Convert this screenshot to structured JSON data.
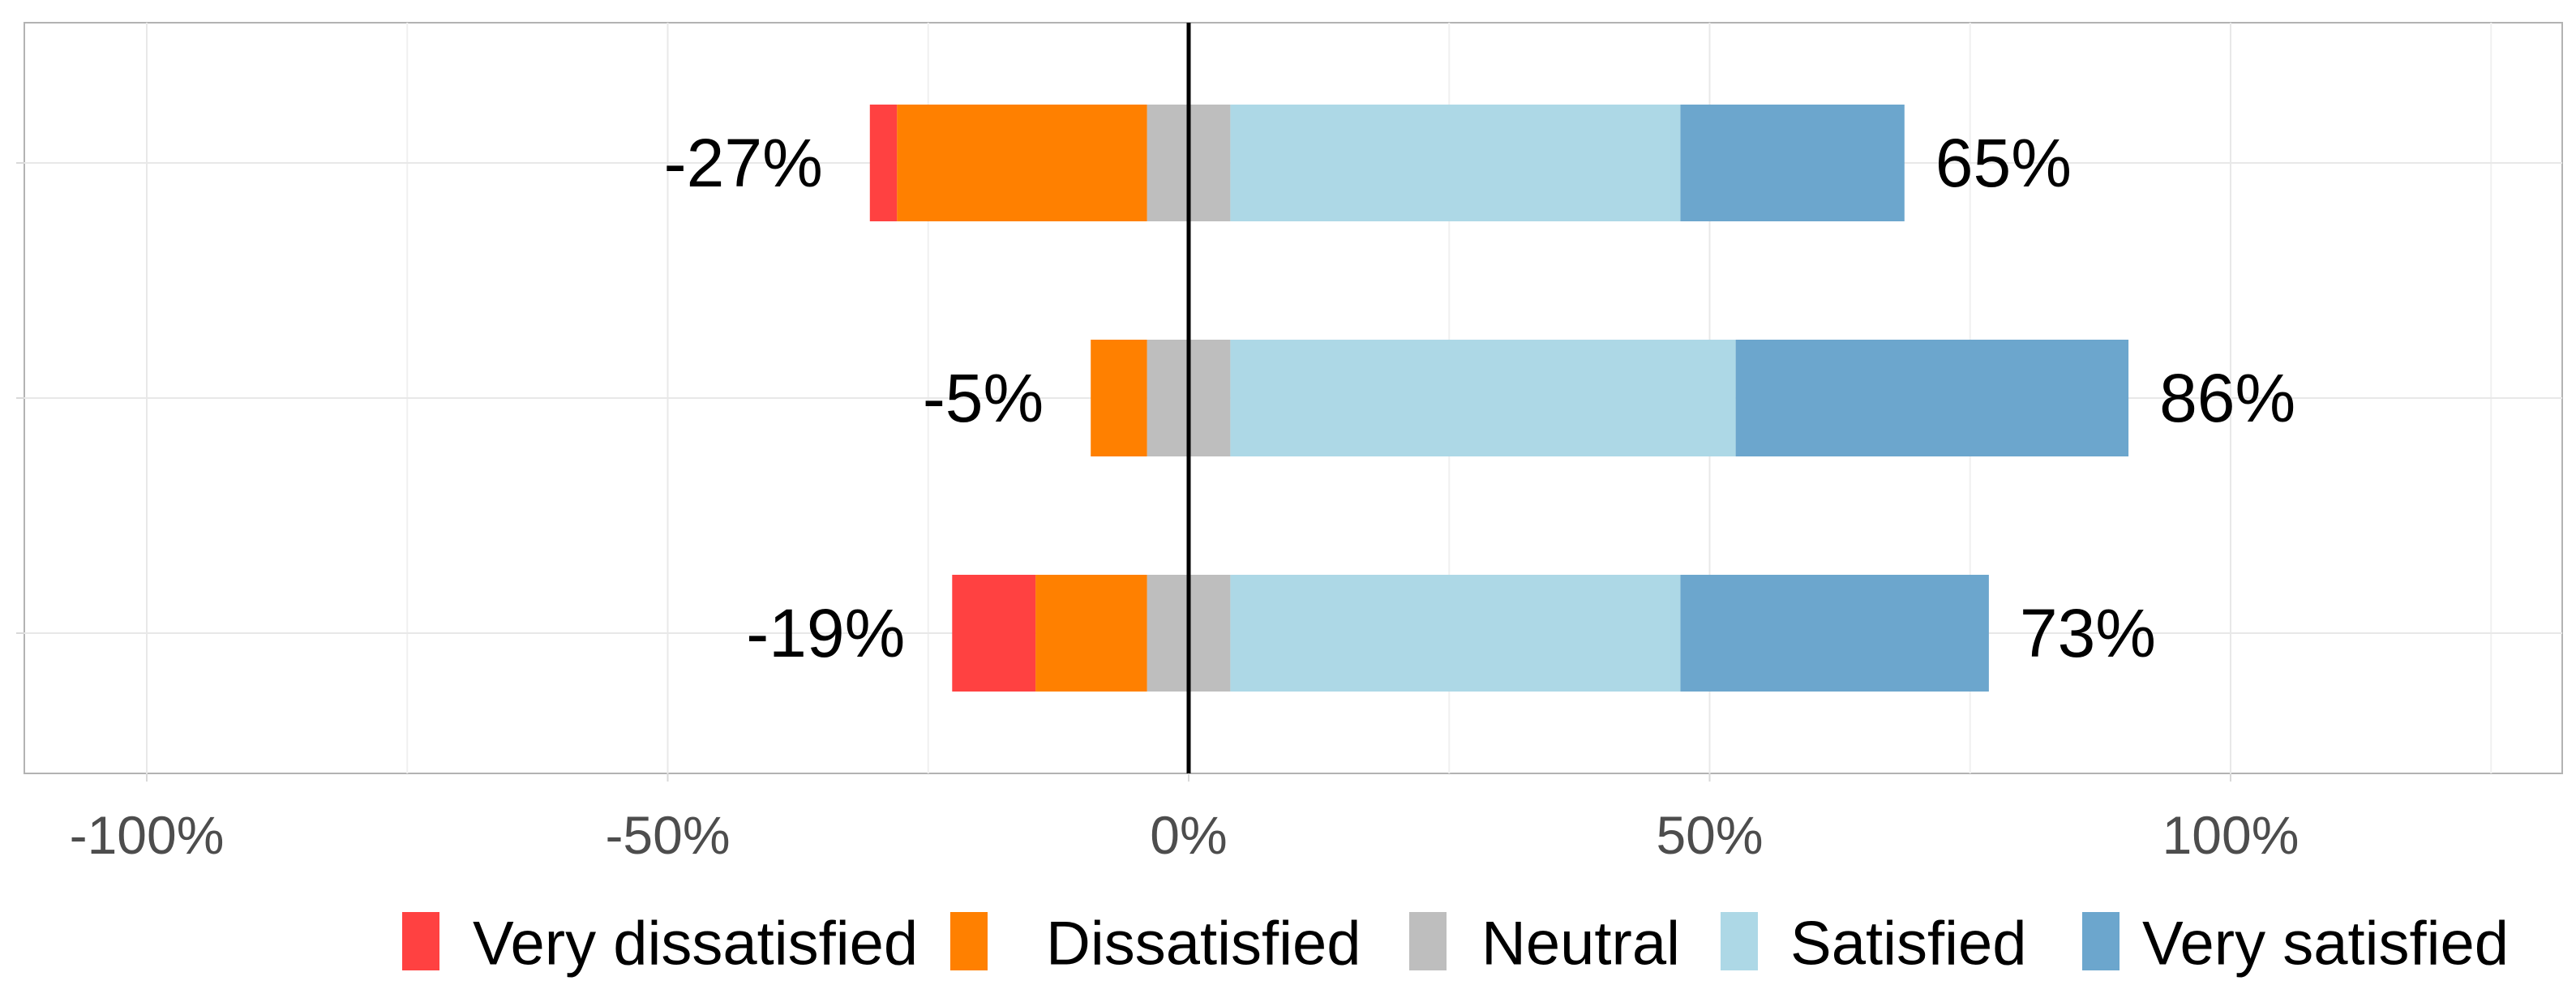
{
  "chart_data": {
    "type": "bar",
    "orientation": "horizontal",
    "stacked": "diverging",
    "title": "",
    "xlabel": "",
    "ylabel": "",
    "xlim": [
      -1.05,
      1.25
    ],
    "x_ticks": [
      {
        "value": -1.0,
        "label": "-100%"
      },
      {
        "value": -0.5,
        "label": "-50%"
      },
      {
        "value": 0.0,
        "label": "0%"
      },
      {
        "value": 0.5,
        "label": "50%"
      },
      {
        "value": 1.0,
        "label": "100%"
      }
    ],
    "grid": true,
    "legend_position": "bottom",
    "categories_legend": [
      {
        "key": "very_dissatisfied",
        "label": "Very dissatisfied",
        "color": "#FF4141"
      },
      {
        "key": "dissatisfied",
        "label": "Dissatisfied",
        "color": "#FF8000"
      },
      {
        "key": "neutral",
        "label": "Neutral",
        "color": "#BEBEBE"
      },
      {
        "key": "satisfied",
        "label": "Satisfied",
        "color": "#ADD8E6"
      },
      {
        "key": "very_satisfied",
        "label": "Very satisfied",
        "color": "#6CA6CD"
      }
    ],
    "rows": [
      {
        "neg_label": "-27%",
        "pos_label": "65%",
        "values": {
          "very_dissatisfied": 0.026,
          "dissatisfied": 0.24,
          "neutral": 0.08,
          "satisfied": 0.432,
          "very_satisfied": 0.215
        }
      },
      {
        "neg_label": "-5%",
        "pos_label": "86%",
        "values": {
          "very_dissatisfied": 0.0,
          "dissatisfied": 0.054,
          "neutral": 0.08,
          "satisfied": 0.485,
          "very_satisfied": 0.377
        }
      },
      {
        "neg_label": "-19%",
        "pos_label": "73%",
        "values": {
          "very_dissatisfied": 0.08,
          "dissatisfied": 0.107,
          "neutral": 0.08,
          "satisfied": 0.432,
          "very_satisfied": 0.296
        }
      }
    ]
  }
}
